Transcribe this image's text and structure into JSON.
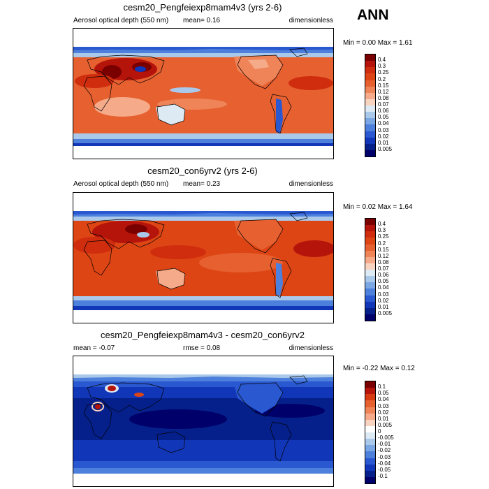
{
  "season": "ANN",
  "panels": [
    {
      "title": "cesm20_Pengfeiexp8mam4v3 (yrs 2-6)",
      "left_label": "Aerosol optical depth (550 nm)",
      "mid_label": "mean=  0.16",
      "right_label": "dimensionless",
      "minmax": "Min =  0.00 Max =  1.61",
      "levels": [
        "0.4",
        "0.3",
        "0.25",
        "0.2",
        "0.15",
        "0.12",
        "0.08",
        "0.07",
        "0.06",
        "0.05",
        "0.04",
        "0.03",
        "0.02",
        "0.01",
        "0.005"
      ],
      "colors": [
        "#7a0000",
        "#b5140a",
        "#cf2d0e",
        "#dd4514",
        "#e66030",
        "#ef8458",
        "#f5ab8a",
        "#f8d3bf",
        "#dde9f3",
        "#aac9ea",
        "#7aa6e4",
        "#4d80dc",
        "#2a58d0",
        "#1236b8",
        "#05208a",
        "#00006a"
      ]
    },
    {
      "title": "cesm20_con6yrv2 (yrs 2-6)",
      "left_label": "Aerosol optical depth (550 nm)",
      "mid_label": "mean=  0.23",
      "right_label": "dimensionless",
      "minmax": "Min =  0.02 Max =  1.64",
      "levels": [
        "0.4",
        "0.3",
        "0.25",
        "0.2",
        "0.15",
        "0.12",
        "0.08",
        "0.07",
        "0.06",
        "0.05",
        "0.04",
        "0.03",
        "0.02",
        "0.01",
        "0.005"
      ],
      "colors": [
        "#7a0000",
        "#b5140a",
        "#cf2d0e",
        "#dd4514",
        "#e66030",
        "#ef8458",
        "#f5ab8a",
        "#f8d3bf",
        "#dde9f3",
        "#aac9ea",
        "#7aa6e4",
        "#4d80dc",
        "#2a58d0",
        "#1236b8",
        "#05208a",
        "#00006a"
      ]
    },
    {
      "title": "cesm20_Pengfeiexp8mam4v3 - cesm20_con6yrv2",
      "left_label": "mean =  -0.07",
      "mid_label": "rmse =  0.08",
      "right_label": "dimensionless",
      "minmax": "Min =  -0.22 Max =  0.12",
      "levels": [
        "0.1",
        "0.05",
        "0.04",
        "0.03",
        "0.02",
        "0.01",
        "0.005",
        "0",
        "-0.005",
        "-0.01",
        "-0.02",
        "-0.03",
        "-0.04",
        "-0.05",
        "-0.1"
      ],
      "colors": [
        "#7a0000",
        "#b5140a",
        "#d83a12",
        "#e66030",
        "#ef8458",
        "#f5ab8a",
        "#f8d3bf",
        "#ffffff",
        "#dde9f3",
        "#aac9ea",
        "#7aa6e4",
        "#4d80dc",
        "#2a58d0",
        "#1236b8",
        "#05208a",
        "#00006a"
      ]
    }
  ]
}
